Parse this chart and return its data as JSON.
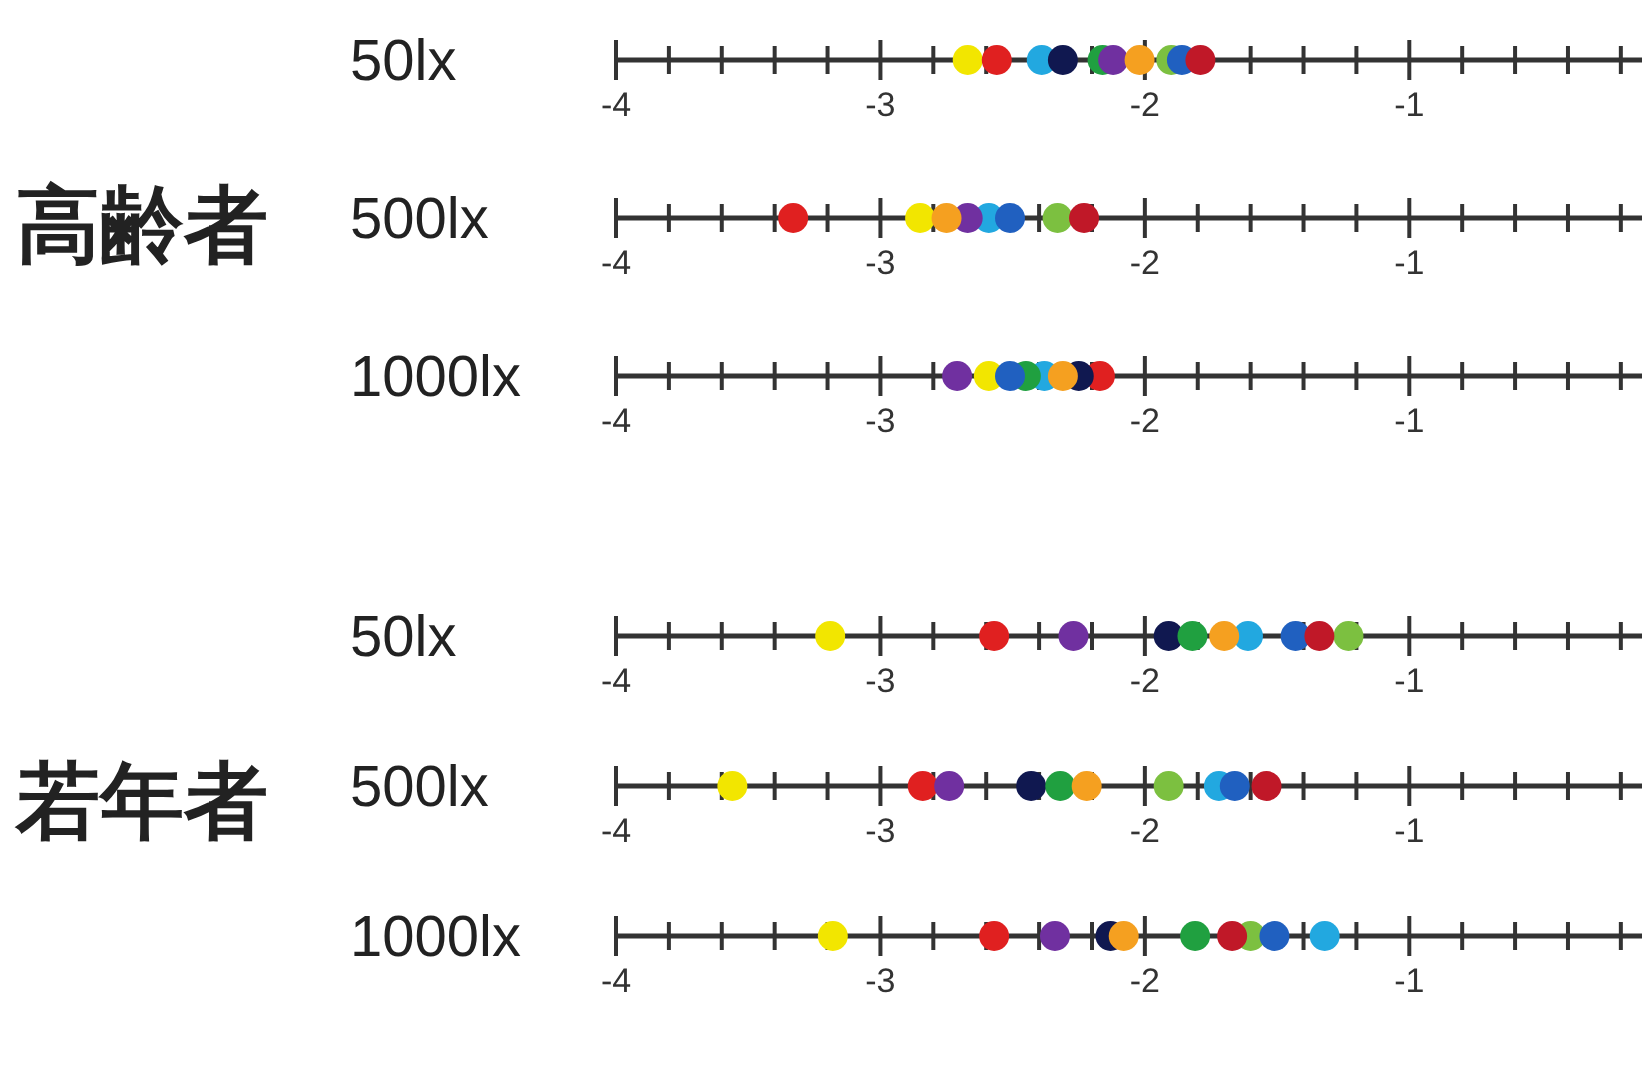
{
  "chart_data": [
    {
      "type": "scatter",
      "orientation": "horizontal",
      "title": "高齢者",
      "categories": [
        "50lx"
      ],
      "marker": "circle",
      "xlim": [
        -4,
        -0.12
      ],
      "xticks": [
        -4,
        {
          "value": -3.8,
          "label": null
        },
        {
          "value": -3.6,
          "label": null
        },
        {
          "value": -3.4,
          "label": null
        },
        {
          "value": -3.2,
          "label": null
        },
        -3,
        {
          "value": -2.8,
          "label": null
        },
        {
          "value": -2.6,
          "label": null
        },
        {
          "value": -2.4,
          "label": null
        },
        {
          "value": -2.2,
          "label": null
        },
        -2,
        {
          "value": -1.8,
          "label": null
        },
        {
          "value": -1.6,
          "label": null
        },
        {
          "value": -1.4,
          "label": null
        },
        {
          "value": -1.2,
          "label": null
        },
        -1,
        {
          "value": -0.8,
          "label": null
        },
        {
          "value": -0.6,
          "label": null
        },
        {
          "value": -0.4,
          "label": null
        },
        {
          "value": -0.2,
          "label": null
        }
      ],
      "series": [
        {
          "color": "#f2e600",
          "values": [
            -2.67
          ]
        },
        {
          "color": "#e02020",
          "values": [
            -2.56
          ]
        },
        {
          "color": "#22a8e0",
          "values": [
            -2.39
          ]
        },
        {
          "color": "#101850",
          "values": [
            -2.31
          ]
        },
        {
          "color": "#20a040",
          "values": [
            -2.16
          ]
        },
        {
          "color": "#7030a0",
          "values": [
            -2.12
          ]
        },
        {
          "color": "#f5a020",
          "values": [
            -2.02
          ]
        },
        {
          "color": "#7cc040",
          "values": [
            -1.9
          ]
        },
        {
          "color": "#2060c0",
          "values": [
            -1.86
          ]
        },
        {
          "color": "#c01828",
          "values": [
            -1.79
          ]
        }
      ]
    },
    {
      "type": "scatter",
      "orientation": "horizontal",
      "categories": [
        "500lx"
      ],
      "marker": "circle",
      "xlim": [
        -4,
        -0.12
      ],
      "xticks": [
        -4,
        {
          "value": -3.8,
          "label": null
        },
        {
          "value": -3.6,
          "label": null
        },
        {
          "value": -3.4,
          "label": null
        },
        {
          "value": -3.2,
          "label": null
        },
        -3,
        {
          "value": -2.8,
          "label": null
        },
        {
          "value": -2.6,
          "label": null
        },
        {
          "value": -2.4,
          "label": null
        },
        {
          "value": -2.2,
          "label": null
        },
        -2,
        {
          "value": -1.8,
          "label": null
        },
        {
          "value": -1.6,
          "label": null
        },
        {
          "value": -1.4,
          "label": null
        },
        {
          "value": -1.2,
          "label": null
        },
        -1,
        {
          "value": -0.8,
          "label": null
        },
        {
          "value": -0.6,
          "label": null
        },
        {
          "value": -0.4,
          "label": null
        },
        {
          "value": -0.2,
          "label": null
        }
      ],
      "series": [
        {
          "color": "#f2e600",
          "values": [
            -2.85
          ]
        },
        {
          "color": "#e02020",
          "values": [
            -3.33
          ]
        },
        {
          "color": "#22a8e0",
          "values": [
            -2.59
          ]
        },
        {
          "color": "#7030a0",
          "values": [
            -2.67
          ]
        },
        {
          "color": "#f5a020",
          "values": [
            -2.75
          ]
        },
        {
          "color": "#7cc040",
          "values": [
            -2.33
          ]
        },
        {
          "color": "#2060c0",
          "values": [
            -2.51
          ]
        },
        {
          "color": "#c01828",
          "values": [
            -2.23
          ]
        }
      ]
    },
    {
      "type": "scatter",
      "orientation": "horizontal",
      "categories": [
        "1000lx"
      ],
      "marker": "circle",
      "xlim": [
        -4,
        -0.12
      ],
      "xticks": [
        -4,
        {
          "value": -3.8,
          "label": null
        },
        {
          "value": -3.6,
          "label": null
        },
        {
          "value": -3.4,
          "label": null
        },
        {
          "value": -3.2,
          "label": null
        },
        -3,
        {
          "value": -2.8,
          "label": null
        },
        {
          "value": -2.6,
          "label": null
        },
        {
          "value": -2.4,
          "label": null
        },
        {
          "value": -2.2,
          "label": null
        },
        -2,
        {
          "value": -1.8,
          "label": null
        },
        {
          "value": -1.6,
          "label": null
        },
        {
          "value": -1.4,
          "label": null
        },
        {
          "value": -1.2,
          "label": null
        },
        -1,
        {
          "value": -0.8,
          "label": null
        },
        {
          "value": -0.6,
          "label": null
        },
        {
          "value": -0.4,
          "label": null
        },
        {
          "value": -0.2,
          "label": null
        }
      ],
      "series": [
        {
          "color": "#f2e600",
          "values": [
            -2.59
          ]
        },
        {
          "color": "#e02020",
          "values": [
            -2.17
          ]
        },
        {
          "color": "#22a8e0",
          "values": [
            -2.38
          ]
        },
        {
          "color": "#101850",
          "values": [
            -2.25
          ]
        },
        {
          "color": "#20a040",
          "values": [
            -2.45
          ]
        },
        {
          "color": "#7030a0",
          "values": [
            -2.71
          ]
        },
        {
          "color": "#f5a020",
          "values": [
            -2.31
          ]
        },
        {
          "color": "#2060c0",
          "values": [
            -2.51
          ]
        }
      ]
    },
    {
      "type": "scatter",
      "orientation": "horizontal",
      "title": "若年者",
      "categories": [
        "50lx"
      ],
      "marker": "circle",
      "xlim": [
        -4,
        -0.12
      ],
      "xticks": [
        -4,
        {
          "value": -3.8,
          "label": null
        },
        {
          "value": -3.6,
          "label": null
        },
        {
          "value": -3.4,
          "label": null
        },
        {
          "value": -3.2,
          "label": null
        },
        -3,
        {
          "value": -2.8,
          "label": null
        },
        {
          "value": -2.6,
          "label": null
        },
        {
          "value": -2.4,
          "label": null
        },
        {
          "value": -2.2,
          "label": null
        },
        -2,
        {
          "value": -1.8,
          "label": null
        },
        {
          "value": -1.6,
          "label": null
        },
        {
          "value": -1.4,
          "label": null
        },
        {
          "value": -1.2,
          "label": null
        },
        -1,
        {
          "value": -0.8,
          "label": null
        },
        {
          "value": -0.6,
          "label": null
        },
        {
          "value": -0.4,
          "label": null
        },
        {
          "value": -0.2,
          "label": null
        }
      ],
      "series": [
        {
          "color": "#f2e600",
          "values": [
            -3.19
          ]
        },
        {
          "color": "#e02020",
          "values": [
            -2.57
          ]
        },
        {
          "color": "#22a8e0",
          "values": [
            -1.61
          ]
        },
        {
          "color": "#101850",
          "values": [
            -1.91
          ]
        },
        {
          "color": "#20a040",
          "values": [
            -1.82
          ]
        },
        {
          "color": "#7030a0",
          "values": [
            -2.27
          ]
        },
        {
          "color": "#f5a020",
          "values": [
            -1.7
          ]
        },
        {
          "color": "#7cc040",
          "values": [
            -1.23
          ]
        },
        {
          "color": "#2060c0",
          "values": [
            -1.43
          ]
        },
        {
          "color": "#c01828",
          "values": [
            -1.34
          ]
        }
      ]
    },
    {
      "type": "scatter",
      "orientation": "horizontal",
      "categories": [
        "500lx"
      ],
      "marker": "circle",
      "xlim": [
        -4,
        -0.12
      ],
      "xticks": [
        -4,
        {
          "value": -3.8,
          "label": null
        },
        {
          "value": -3.6,
          "label": null
        },
        {
          "value": -3.4,
          "label": null
        },
        {
          "value": -3.2,
          "label": null
        },
        -3,
        {
          "value": -2.8,
          "label": null
        },
        {
          "value": -2.6,
          "label": null
        },
        {
          "value": -2.4,
          "label": null
        },
        {
          "value": -2.2,
          "label": null
        },
        -2,
        {
          "value": -1.8,
          "label": null
        },
        {
          "value": -1.6,
          "label": null
        },
        {
          "value": -1.4,
          "label": null
        },
        {
          "value": -1.2,
          "label": null
        },
        -1,
        {
          "value": -0.8,
          "label": null
        },
        {
          "value": -0.6,
          "label": null
        },
        {
          "value": -0.4,
          "label": null
        },
        {
          "value": -0.2,
          "label": null
        }
      ],
      "series": [
        {
          "color": "#f2e600",
          "values": [
            -3.56
          ]
        },
        {
          "color": "#e02020",
          "values": [
            -2.84
          ]
        },
        {
          "color": "#22a8e0",
          "values": [
            -1.72
          ]
        },
        {
          "color": "#101850",
          "values": [
            -2.43
          ]
        },
        {
          "color": "#20a040",
          "values": [
            -2.32
          ]
        },
        {
          "color": "#7030a0",
          "values": [
            -2.74
          ]
        },
        {
          "color": "#f5a020",
          "values": [
            -2.22
          ]
        },
        {
          "color": "#7cc040",
          "values": [
            -1.91
          ]
        },
        {
          "color": "#2060c0",
          "values": [
            -1.66
          ]
        },
        {
          "color": "#c01828",
          "values": [
            -1.54
          ]
        }
      ]
    },
    {
      "type": "scatter",
      "orientation": "horizontal",
      "categories": [
        "1000lx"
      ],
      "marker": "circle",
      "xlim": [
        -4,
        -0.12
      ],
      "xticks": [
        -4,
        {
          "value": -3.8,
          "label": null
        },
        {
          "value": -3.6,
          "label": null
        },
        {
          "value": -3.4,
          "label": null
        },
        {
          "value": -3.2,
          "label": null
        },
        -3,
        {
          "value": -2.8,
          "label": null
        },
        {
          "value": -2.6,
          "label": null
        },
        {
          "value": -2.4,
          "label": null
        },
        {
          "value": -2.2,
          "label": null
        },
        -2,
        {
          "value": -1.8,
          "label": null
        },
        {
          "value": -1.6,
          "label": null
        },
        {
          "value": -1.4,
          "label": null
        },
        {
          "value": -1.2,
          "label": null
        },
        -1,
        {
          "value": -0.8,
          "label": null
        },
        {
          "value": -0.6,
          "label": null
        },
        {
          "value": -0.4,
          "label": null
        },
        {
          "value": -0.2,
          "label": null
        }
      ],
      "series": [
        {
          "color": "#f2e600",
          "values": [
            -3.18
          ]
        },
        {
          "color": "#e02020",
          "values": [
            -2.57
          ]
        },
        {
          "color": "#22a8e0",
          "values": [
            -1.32
          ]
        },
        {
          "color": "#101850",
          "values": [
            -2.13
          ]
        },
        {
          "color": "#20a040",
          "values": [
            -1.81
          ]
        },
        {
          "color": "#7030a0",
          "values": [
            -2.34
          ]
        },
        {
          "color": "#f5a020",
          "values": [
            -2.08
          ]
        },
        {
          "color": "#7cc040",
          "values": [
            -1.6
          ]
        },
        {
          "color": "#2060c0",
          "values": [
            -1.51
          ]
        },
        {
          "color": "#c01828",
          "values": [
            -1.67
          ]
        }
      ]
    }
  ]
}
